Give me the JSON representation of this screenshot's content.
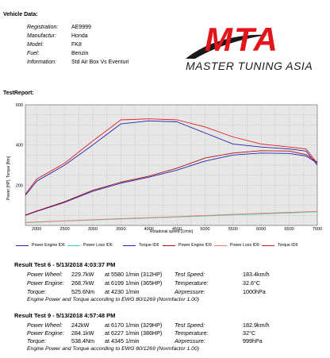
{
  "vehicle": {
    "heading": "Vehicle Data:",
    "rows": [
      {
        "label": "Registration:",
        "value": "AE9999"
      },
      {
        "label": "Manufactur:",
        "value": "Honda"
      },
      {
        "label": "Model:",
        "value": "FK8"
      },
      {
        "label": "Fuel:",
        "value": "Benzin"
      },
      {
        "label": "Information:",
        "value": "Std Air Box Vs Eventuri"
      }
    ]
  },
  "logo": {
    "mark": "MTA",
    "text": "MASTER TUNING ASIA",
    "colors": {
      "mark": "#e3151b",
      "swoosh": "#1a1a1a",
      "text": "#1a1a1a"
    }
  },
  "test_report": {
    "heading": "TestReport:"
  },
  "chart_data": {
    "type": "line",
    "xlabel": "Rotational speed [1/min]",
    "ylabel": "Power [HP], Torque [Nm]",
    "xlim": [
      1800,
      7000
    ],
    "ylim": [
      0,
      600
    ],
    "xticks": [
      2000,
      2500,
      3000,
      3500,
      4000,
      4500,
      5000,
      5500,
      6000,
      6500,
      7000
    ],
    "yticks": [
      200,
      400,
      600
    ],
    "grid": true,
    "legend_position": "bottom",
    "series": [
      {
        "name": "Power Engine ID6",
        "color": "#2323b4",
        "x": [
          1800,
          2000,
          2500,
          3000,
          3500,
          4000,
          4500,
          5000,
          5500,
          6000,
          6500,
          6800,
          7000
        ],
        "y": [
          50,
          70,
          115,
          170,
          210,
          240,
          275,
          320,
          350,
          360,
          358,
          345,
          310
        ]
      },
      {
        "name": "Power Loss ID6",
        "color": "#38d6d6",
        "x": [
          1800,
          2500,
          3500,
          4500,
          5500,
          6500,
          7000
        ],
        "y": [
          14,
          22,
          32,
          42,
          52,
          62,
          68
        ]
      },
      {
        "name": "Torque ID6",
        "color": "#2323b4",
        "x": [
          1800,
          2000,
          2500,
          3000,
          3500,
          4000,
          4500,
          5000,
          5500,
          6000,
          6500,
          6800,
          7000
        ],
        "y": [
          150,
          220,
          300,
          400,
          505,
          520,
          515,
          460,
          405,
          390,
          380,
          370,
          300
        ]
      },
      {
        "name": "Power Engine ID9",
        "color": "#b01010",
        "x": [
          1800,
          2000,
          2500,
          3000,
          3500,
          4000,
          4500,
          5000,
          5500,
          6000,
          6500,
          6800,
          7000
        ],
        "y": [
          52,
          72,
          118,
          175,
          215,
          245,
          285,
          335,
          360,
          372,
          370,
          352,
          315
        ]
      },
      {
        "name": "Power Loss ID9",
        "color": "#f07a60",
        "x": [
          1800,
          2500,
          3500,
          4500,
          5500,
          6500,
          7000
        ],
        "y": [
          15,
          23,
          34,
          44,
          55,
          65,
          70
        ]
      },
      {
        "name": "Torque ID9",
        "color": "#e02020",
        "x": [
          1800,
          2000,
          2500,
          3000,
          3500,
          4000,
          4500,
          5000,
          5500,
          6000,
          6500,
          6800,
          7000
        ],
        "y": [
          155,
          230,
          310,
          420,
          525,
          530,
          525,
          490,
          440,
          405,
          390,
          380,
          310
        ]
      }
    ]
  },
  "results": [
    {
      "title": "Result Test 6 - 5/13/2018 4:03:37 PM",
      "rows": [
        {
          "k": "Power Wheel:",
          "v": "229.7kW",
          "a": "at 5580 1/min (312HP)",
          "k2": "Test Speed:",
          "v2": "183.4km/h"
        },
        {
          "k": "Power Engine:",
          "v": "268.7kW",
          "a": "at 6199 1/min (365HP)",
          "k2": "Temperature:",
          "v2": "32.6°C"
        },
        {
          "k": "Torque:",
          "v": "525.6Nm",
          "a": "at 4230 1/min",
          "k2": "Airpressure:",
          "v2": "1000hPa"
        }
      ],
      "note": "Engine Power and Torque according to EWG 80/1269 (Normfactor 1.00)"
    },
    {
      "title": "Result Test 9 - 5/13/2018 4:57:48 PM",
      "rows": [
        {
          "k": "Power Wheel:",
          "v": "242kW",
          "a": "at 6170 1/min (329HP)",
          "k2": "Test Speed:",
          "v2": "182.9km/h"
        },
        {
          "k": "Power Engine:",
          "v": "284.1kW",
          "a": "at 6227 1/min (386HP)",
          "k2": "Temperature:",
          "v2": "32°C"
        },
        {
          "k": "Torque:",
          "v": "538.4Nm",
          "a": "at 4345 1/min",
          "k2": "Airpressure:",
          "v2": "999hPa"
        }
      ],
      "note": "Engine Power and Torque according to EWG 80/1269 (Normfactor 1.00)"
    }
  ]
}
